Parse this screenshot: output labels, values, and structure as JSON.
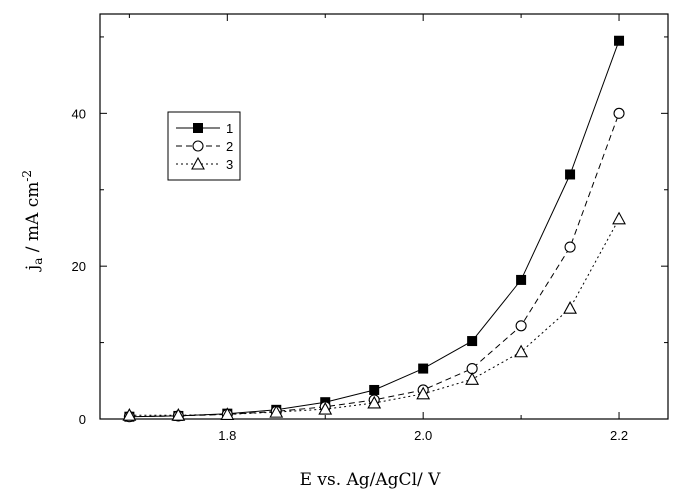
{
  "chart_data": {
    "type": "line",
    "title": "",
    "xlabel": "E vs. Ag/AgCl/ V",
    "ylabel_main": "j",
    "ylabel_sub": "a",
    "ylabel_rest": " / mA cm",
    "ylabel_sup": "-2",
    "xlim": [
      1.67,
      2.25
    ],
    "ylim": [
      0,
      53
    ],
    "xticks": [
      {
        "value": 1.8,
        "label": "1.8"
      },
      {
        "value": 2.0,
        "label": "2.0"
      },
      {
        "value": 2.2,
        "label": "2.2"
      }
    ],
    "yticks": [
      {
        "value": 0,
        "label": "0"
      },
      {
        "value": 20,
        "label": "20"
      },
      {
        "value": 40,
        "label": "40"
      }
    ],
    "grid": false,
    "legend_position": "upper-left",
    "series": [
      {
        "name": "1",
        "marker": "filled-square",
        "line": "solid",
        "x": [
          1.7,
          1.75,
          1.8,
          1.85,
          1.9,
          1.95,
          2.0,
          2.05,
          2.1,
          2.15,
          2.2
        ],
        "y": [
          0.3,
          0.4,
          0.7,
          1.2,
          2.2,
          3.8,
          6.6,
          10.2,
          18.2,
          32.0,
          49.5
        ]
      },
      {
        "name": "2",
        "marker": "open-circle",
        "line": "dashed",
        "x": [
          1.7,
          1.75,
          1.8,
          1.85,
          1.9,
          1.95,
          2.0,
          2.05,
          2.1,
          2.15,
          2.2
        ],
        "y": [
          0.3,
          0.4,
          0.6,
          1.0,
          1.6,
          2.5,
          3.8,
          6.6,
          12.2,
          22.5,
          40.0
        ]
      },
      {
        "name": "3",
        "marker": "open-triangle",
        "line": "dotted",
        "x": [
          1.7,
          1.75,
          1.8,
          1.85,
          1.9,
          1.95,
          2.0,
          2.05,
          2.1,
          2.15,
          2.2
        ],
        "y": [
          0.5,
          0.5,
          0.6,
          0.9,
          1.3,
          2.1,
          3.3,
          5.2,
          8.8,
          14.5,
          26.2
        ]
      }
    ]
  }
}
